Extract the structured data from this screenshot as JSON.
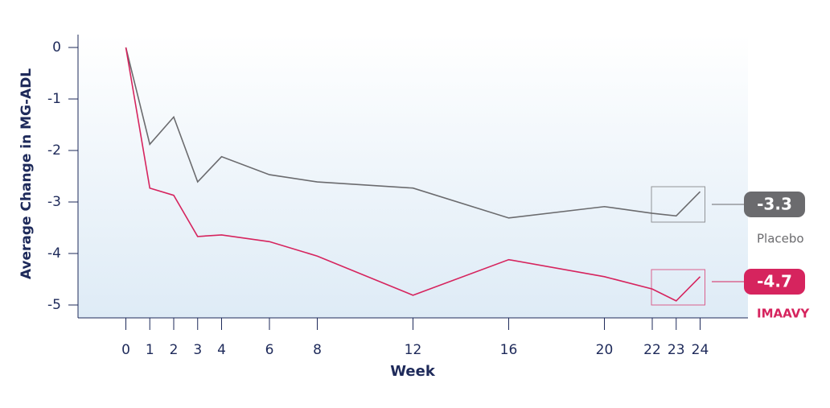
{
  "chart_data": {
    "type": "line",
    "x_label": "Week",
    "y_label": "Average Change in MG-ADL",
    "x": [
      0,
      1,
      2,
      3,
      4,
      6,
      8,
      12,
      16,
      20,
      22,
      23,
      24
    ],
    "series": [
      {
        "name": "Placebo",
        "color": "#6b6b6e",
        "values": [
          0,
          -1.88,
          -1.35,
          -2.61,
          -2.12,
          -2.47,
          -2.61,
          -2.73,
          -3.31,
          -3.09,
          -3.22,
          -3.27,
          -2.8
        ]
      },
      {
        "name": "IMAAVY",
        "color": "#d6245e",
        "values": [
          0,
          -2.73,
          -2.87,
          -3.67,
          -3.64,
          -3.77,
          -4.05,
          -4.81,
          -4.12,
          -4.45,
          -4.69,
          -4.92,
          -4.45
        ]
      }
    ],
    "annotations": [
      "-3.3",
      "-4.7"
    ],
    "xlim": [
      -2,
      26
    ],
    "ylim": [
      -5.25,
      0.25
    ],
    "xticks": [
      0,
      1,
      2,
      3,
      4,
      6,
      8,
      12,
      16,
      20,
      22,
      23,
      24
    ],
    "yticks": [
      0,
      -1,
      -2,
      -3,
      -4,
      -5
    ]
  }
}
